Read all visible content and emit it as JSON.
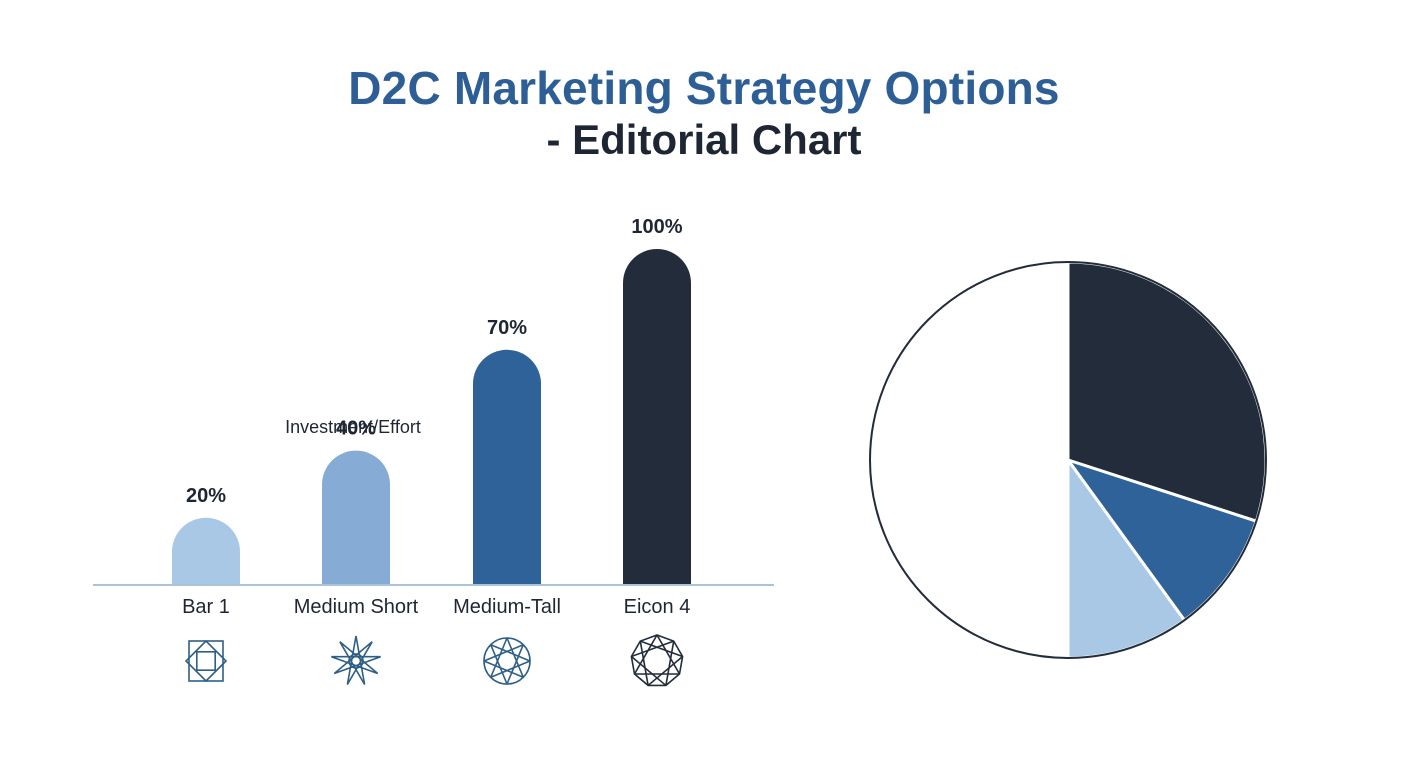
{
  "header": {
    "title": "D2C Marketing Strategy Options",
    "subtitle": "- Editorial Chart"
  },
  "chart_data": [
    {
      "type": "bar",
      "title": "",
      "xlabel": "",
      "ylabel": "",
      "ylim": [
        0,
        100
      ],
      "grid": false,
      "annotation": "Investment/Effort",
      "categories": [
        "Bar 1",
        "Medium Short",
        "Medium-Tall",
        "Eicon 4"
      ],
      "values": [
        20,
        40,
        70,
        100
      ],
      "value_labels": [
        "20%",
        "40%",
        "70%",
        "100%"
      ],
      "colors": [
        "#a9c8e6",
        "#86acd6",
        "#2f6299",
        "#232c3a"
      ],
      "icons": [
        "square-diamond-icon",
        "star-burst-icon",
        "circle-lattice-icon",
        "faceted-circle-icon"
      ]
    },
    {
      "type": "pie",
      "title": "",
      "slices": [
        {
          "value": 30,
          "color": "#232c3a"
        },
        {
          "value": 10,
          "color": "#2f6299"
        },
        {
          "value": 10,
          "color": "#a9c8e6"
        },
        {
          "value": 50,
          "color": "#ffffff"
        }
      ]
    }
  ]
}
